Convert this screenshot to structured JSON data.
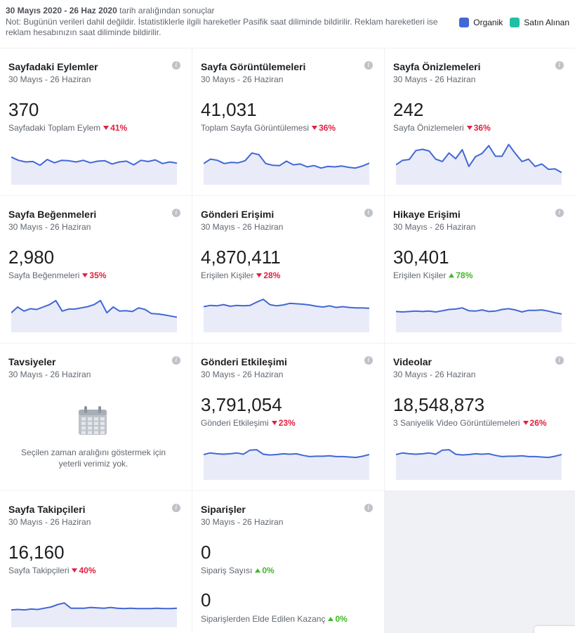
{
  "header": {
    "range_bold": "30 Mayıs 2020 - 26 Haz 2020",
    "range_rest": " tarih aralığından sonuçlar",
    "note": "Not: Bugünün verileri dahil değildir. İstatistiklerle ilgili hareketler Pasifik saat diliminde bildirilir. Reklam hareketleri ise reklam hesabınızın saat diliminde bildirilir.",
    "legend": [
      {
        "label": "Organik",
        "color": "#4267d6"
      },
      {
        "label": "Satın Alınan",
        "color": "#21bfa6"
      }
    ]
  },
  "colors": {
    "line": "#4267d6",
    "fill": "#e9ecf8",
    "down": "#e41e3f",
    "up": "#42b72a"
  },
  "cards": [
    {
      "title": "Sayfadaki Eylemler",
      "date": "30 Mayıs - 26 Haziran",
      "value": "370",
      "metric": "Sayfadaki Toplam Eylem",
      "change": "41%",
      "direction": "down",
      "spark": [
        68,
        60,
        56,
        57,
        48,
        62,
        54,
        60,
        59,
        56,
        60,
        54,
        58,
        59,
        51,
        56,
        58,
        49,
        60,
        57,
        61,
        52,
        56,
        53
      ]
    },
    {
      "title": "Sayfa Görüntülemeleri",
      "date": "30 Mayıs - 26 Haziran",
      "value": "41,031",
      "metric": "Toplam Sayfa Görüntülemesi",
      "change": "36%",
      "direction": "down",
      "spark": [
        52,
        63,
        60,
        52,
        55,
        54,
        59,
        78,
        74,
        52,
        48,
        47,
        58,
        49,
        51,
        44,
        47,
        41,
        45,
        44,
        46,
        43,
        41,
        46,
        53
      ]
    },
    {
      "title": "Sayfa Önizlemeleri",
      "date": "30 Mayıs - 26 Haziran",
      "value": "242",
      "metric": "Sayfa Önizlemeleri",
      "change": "36%",
      "direction": "down",
      "spark": [
        49,
        60,
        62,
        84,
        87,
        83,
        63,
        57,
        78,
        64,
        86,
        45,
        69,
        77,
        96,
        70,
        70,
        99,
        77,
        57,
        63,
        45,
        51,
        38,
        39,
        30
      ]
    },
    {
      "title": "Sayfa Beğenmeleri",
      "date": "30 Mayıs - 26 Haziran",
      "value": "2,980",
      "metric": "Sayfa Beğenmeleri",
      "change": "35%",
      "direction": "down",
      "spark": [
        48,
        62,
        52,
        58,
        56,
        62,
        68,
        78,
        52,
        57,
        57,
        60,
        63,
        68,
        78,
        48,
        62,
        52,
        53,
        51,
        60,
        56,
        46,
        45,
        43,
        40,
        37
      ]
    },
    {
      "title": "Gönderi Erişimi",
      "date": "30 Mayıs - 26 Haziran",
      "value": "4,870,411",
      "metric": "Erişilen Kişiler",
      "change": "28%",
      "direction": "down",
      "spark": [
        63,
        66,
        65,
        68,
        64,
        66,
        65,
        66,
        74,
        81,
        68,
        65,
        67,
        71,
        70,
        69,
        67,
        64,
        62,
        65,
        61,
        63,
        61,
        60,
        60,
        59
      ]
    },
    {
      "title": "Hikaye Erişimi",
      "date": "30 Mayıs - 26 Haziran",
      "value": "30,401",
      "metric": "Erişilen Kişiler",
      "change": "78%",
      "direction": "up",
      "spark": [
        51,
        50,
        51,
        52,
        51,
        52,
        50,
        53,
        56,
        57,
        60,
        53,
        52,
        55,
        51,
        52,
        56,
        58,
        55,
        50,
        54,
        54,
        55,
        52,
        48,
        45
      ]
    },
    {
      "title": "Tavsiyeler",
      "date": "30 Mayıs - 26 Haziran",
      "empty": true,
      "empty_text": "Seçilen zaman aralığını göstermek için yeterli verimiz yok."
    },
    {
      "title": "Gönderi Etkileşimi",
      "date": "30 Mayıs - 26 Haziran",
      "value": "3,791,054",
      "metric": "Gönderi Etkileşimi",
      "change": "23%",
      "direction": "down",
      "spark": [
        62,
        66,
        64,
        63,
        64,
        66,
        63,
        73,
        74,
        63,
        61,
        62,
        64,
        63,
        64,
        60,
        57,
        58,
        58,
        59,
        57,
        57,
        56,
        55,
        58,
        62
      ]
    },
    {
      "title": "Videolar",
      "date": "30 Mayıs - 26 Haziran",
      "value": "18,548,873",
      "metric": "3 Saniyelik Video Görüntülemeleri",
      "change": "26%",
      "direction": "down",
      "spark": [
        62,
        66,
        64,
        63,
        64,
        66,
        63,
        73,
        74,
        63,
        61,
        62,
        64,
        63,
        64,
        60,
        57,
        58,
        58,
        59,
        57,
        57,
        56,
        55,
        58,
        62
      ]
    },
    {
      "title": "Sayfa Takipçileri",
      "date": "30 Mayıs - 26 Haziran",
      "value": "16,160",
      "metric": "Sayfa Takipçileri",
      "change": "40%",
      "direction": "down",
      "spark": [
        43,
        44,
        43,
        45,
        44,
        47,
        50,
        56,
        60,
        47,
        47,
        47,
        49,
        48,
        47,
        49,
        47,
        46,
        47,
        46,
        46,
        46,
        47,
        46,
        46,
        47
      ]
    },
    {
      "title": "Siparişler",
      "date": "30 Mayıs - 26 Haziran",
      "value": "0",
      "metric": "Sipariş Sayısı",
      "change": "0%",
      "direction": "up",
      "value2": "0",
      "metric2": "Siparişlerden Elde Edilen Kazanç",
      "change2": "0%",
      "direction2": "up"
    }
  ]
}
